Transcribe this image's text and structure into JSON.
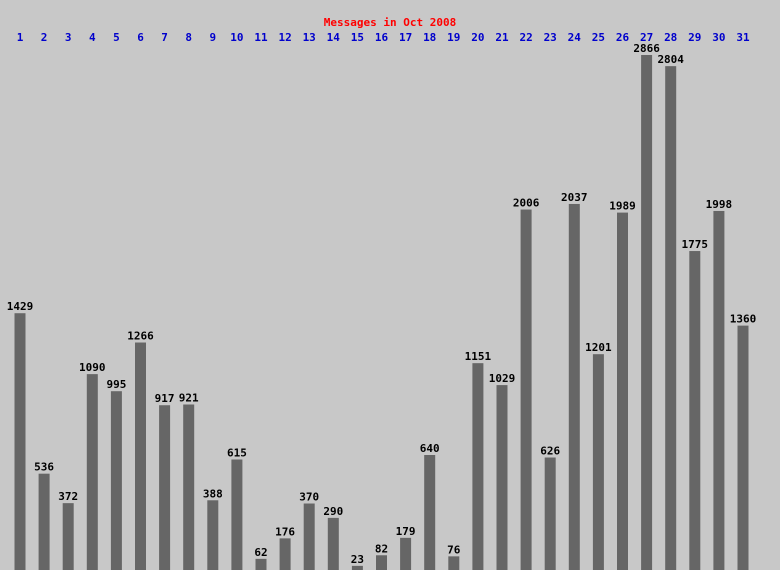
{
  "chart_data": {
    "type": "bar",
    "title": "Messages in Oct 2008",
    "categories": [
      "1",
      "2",
      "3",
      "4",
      "5",
      "6",
      "7",
      "8",
      "9",
      "10",
      "11",
      "12",
      "13",
      "14",
      "15",
      "16",
      "17",
      "18",
      "19",
      "20",
      "21",
      "22",
      "23",
      "24",
      "25",
      "26",
      "27",
      "28",
      "29",
      "30",
      "31"
    ],
    "values": [
      1429,
      536,
      372,
      1090,
      995,
      1266,
      917,
      921,
      388,
      615,
      62,
      176,
      370,
      290,
      23,
      82,
      179,
      640,
      76,
      1151,
      1029,
      2006,
      626,
      2037,
      1201,
      1989,
      2866,
      2804,
      1775,
      1998,
      1360
    ],
    "color": "#666666"
  }
}
